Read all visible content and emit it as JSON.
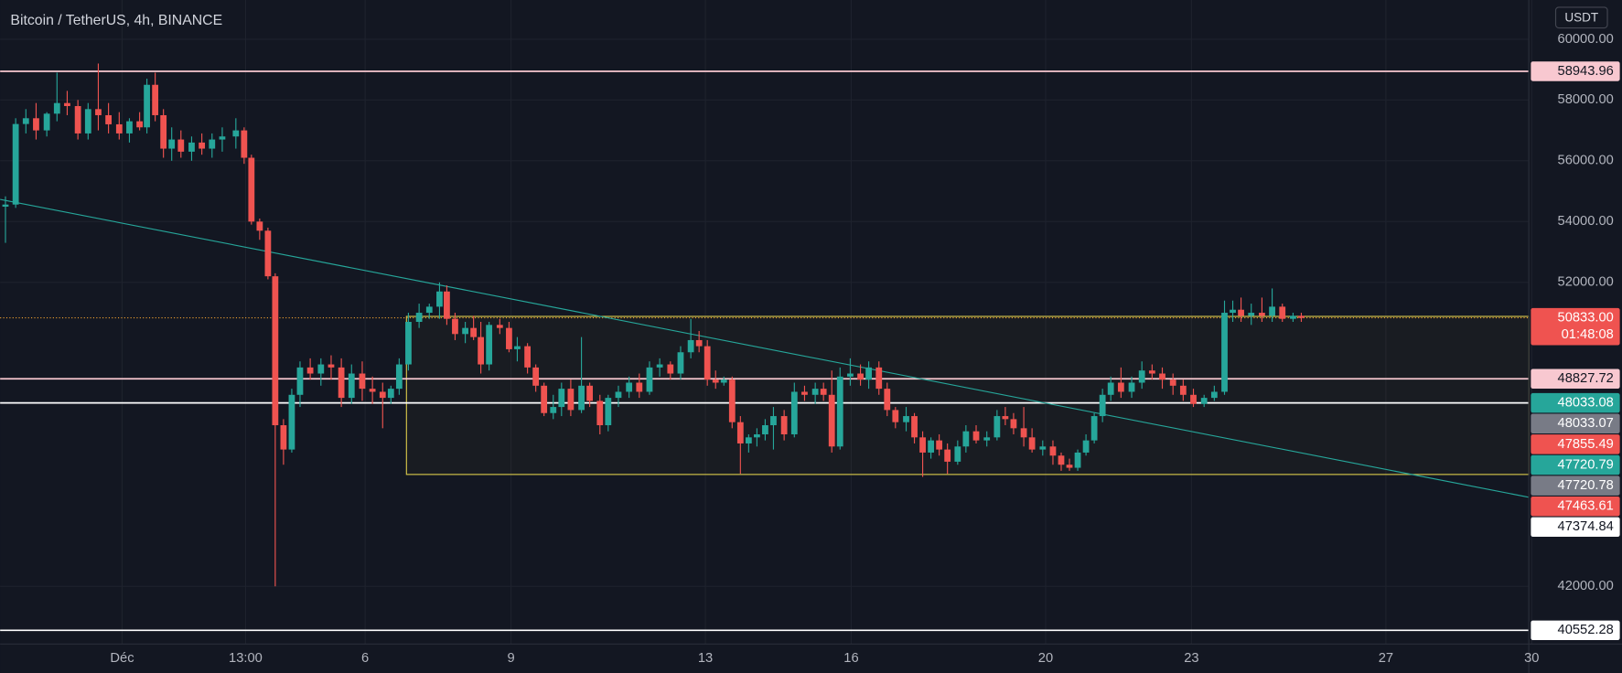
{
  "chart_data": {
    "type": "candlestick",
    "title": "Bitcoin / TetherUS, 4h, BINANCE",
    "currency": "USDT",
    "up_color": "#26a69a",
    "down_color": "#ef5350",
    "grid": true,
    "xlim": [
      -1.51,
      29.94
    ],
    "ylim": [
      40100,
      61290
    ],
    "xticks": [
      {
        "value": 1,
        "label": "Déc"
      },
      {
        "value": 3.54,
        "label": "13:00"
      },
      6,
      9,
      13,
      16,
      20,
      23,
      27,
      30
    ],
    "yticks": [
      {
        "value": 60000,
        "label": "60000.00"
      },
      {
        "value": 58000,
        "label": "58000.00"
      },
      {
        "value": 56000,
        "label": "56000.00"
      },
      {
        "value": 54000,
        "label": "54000.00"
      },
      {
        "value": 52000,
        "label": "52000.00"
      },
      {
        "value": 42000,
        "label": "42000.00"
      }
    ],
    "x": [
      -1.4,
      -1.19,
      -0.98,
      -0.77,
      -0.55,
      -0.34,
      -0.13,
      0.09,
      0.3,
      0.51,
      0.72,
      0.94,
      1.15,
      1.36,
      1.51,
      1.68,
      1.85,
      2.02,
      2.21,
      2.43,
      2.64,
      2.85,
      3.06,
      3.34,
      3.51,
      3.66,
      3.83,
      4.0,
      4.15,
      4.32,
      4.49,
      4.66,
      4.87,
      5.09,
      5.3,
      5.51,
      5.72,
      5.94,
      6.15,
      6.36,
      6.53,
      6.7,
      6.89,
      7.11,
      7.32,
      7.53,
      7.68,
      7.85,
      8.06,
      8.23,
      8.38,
      8.55,
      8.77,
      8.96,
      9.13,
      9.34,
      9.51,
      9.68,
      9.87,
      10.04,
      10.23,
      10.45,
      10.62,
      10.83,
      11.0,
      11.21,
      11.43,
      11.64,
      11.85,
      12.06,
      12.28,
      12.49,
      12.7,
      12.87,
      13.04,
      13.21,
      13.38,
      13.55,
      13.72,
      13.89,
      14.06,
      14.23,
      14.4,
      14.62,
      14.83,
      15.04,
      15.26,
      15.43,
      15.6,
      15.77,
      15.98,
      16.19,
      16.36,
      16.57,
      16.74,
      16.91,
      17.13,
      17.3,
      17.47,
      17.64,
      17.81,
      17.98,
      18.19,
      18.36,
      18.57,
      18.79,
      19.0,
      19.17,
      19.34,
      19.55,
      19.72,
      19.94,
      20.15,
      20.32,
      20.49,
      20.66,
      20.83,
      21.0,
      21.17,
      21.34,
      21.55,
      21.77,
      21.98,
      22.19,
      22.4,
      22.62,
      22.83,
      23.04,
      23.26,
      23.47,
      23.68,
      23.85,
      24.02,
      24.23,
      24.45,
      24.66,
      24.87,
      25.09,
      25.26
    ],
    "open": [
      54490,
      54560,
      57210,
      57400,
      57000,
      57550,
      57900,
      57800,
      56900,
      57700,
      57500,
      57200,
      56900,
      57300,
      57100,
      58500,
      57500,
      56400,
      56700,
      56300,
      56600,
      56400,
      56700,
      56800,
      57000,
      56100,
      54000,
      53700,
      52200,
      47300,
      46500,
      48300,
      49200,
      49000,
      49300,
      49200,
      48200,
      49000,
      48500,
      48400,
      48200,
      48500,
      49300,
      50700,
      51000,
      51200,
      51700,
      50800,
      50300,
      50500,
      50200,
      49300,
      50600,
      50500,
      49800,
      49900,
      49200,
      48600,
      47700,
      47900,
      48500,
      47800,
      48600,
      48100,
      47300,
      48200,
      48400,
      48700,
      48400,
      49200,
      49300,
      49000,
      49700,
      50100,
      49900,
      48800,
      48700,
      48800,
      47400,
      46700,
      46900,
      47000,
      47300,
      47600,
      47000,
      48400,
      48300,
      48500,
      48300,
      46600,
      48900,
      49000,
      48800,
      49200,
      48500,
      47800,
      47400,
      47600,
      46900,
      46400,
      46800,
      46500,
      46100,
      46600,
      47100,
      46800,
      46900,
      47600,
      47500,
      47200,
      46900,
      46500,
      46600,
      46300,
      46000,
      45900,
      46400,
      46800,
      47600,
      48300,
      48700,
      48400,
      48700,
      49100,
      49000,
      48800,
      48600,
      48300,
      48000,
      48200,
      48400,
      51000,
      51100,
      50900,
      51000,
      50900,
      51200,
      50800,
      50900
    ],
    "high": [
      54830,
      57400,
      57700,
      57900,
      57600,
      58900,
      58300,
      58000,
      57900,
      59200,
      57900,
      57600,
      57400,
      57600,
      58700,
      58900,
      57700,
      57100,
      57000,
      56800,
      56900,
      56900,
      57100,
      57400,
      57100,
      56200,
      54100,
      53800,
      52300,
      47500,
      48500,
      49400,
      49500,
      49500,
      49600,
      49500,
      49300,
      49400,
      48900,
      48700,
      48600,
      49500,
      51000,
      51300,
      51300,
      52000,
      51900,
      51000,
      50700,
      50900,
      50700,
      50700,
      50800,
      50700,
      50200,
      50000,
      49300,
      48700,
      48300,
      48700,
      48800,
      50200,
      48700,
      48300,
      48300,
      48600,
      48900,
      49000,
      49400,
      49500,
      49400,
      49900,
      50800,
      50400,
      50100,
      49100,
      48900,
      48900,
      47600,
      47000,
      47200,
      47500,
      47900,
      47800,
      48700,
      48600,
      48700,
      48700,
      49100,
      49200,
      49500,
      49300,
      49400,
      49400,
      48700,
      47900,
      47900,
      47700,
      47100,
      46900,
      47000,
      46700,
      46800,
      47300,
      47300,
      47100,
      47800,
      47900,
      47700,
      47900,
      47200,
      46800,
      46800,
      46400,
      46200,
      46500,
      47000,
      47700,
      48500,
      48900,
      49200,
      48900,
      49400,
      49300,
      49200,
      49000,
      48800,
      48500,
      48300,
      48600,
      51400,
      51400,
      51500,
      51300,
      51500,
      51800,
      51300,
      51000,
      51000
    ],
    "low": [
      53300,
      54450,
      56900,
      56700,
      56800,
      57300,
      57500,
      56700,
      56700,
      57000,
      56900,
      56700,
      56600,
      57000,
      56900,
      57300,
      56100,
      56000,
      56100,
      56000,
      56200,
      56100,
      56300,
      56400,
      55900,
      53900,
      53400,
      52100,
      42000,
      46000,
      46400,
      47900,
      48800,
      48600,
      48800,
      47900,
      48000,
      48100,
      48000,
      47200,
      48000,
      48300,
      49100,
      50500,
      50800,
      50800,
      50600,
      50100,
      50000,
      50100,
      49000,
      49100,
      50300,
      49700,
      49400,
      49000,
      48400,
      47600,
      47500,
      47600,
      47600,
      47700,
      47900,
      47000,
      47100,
      47900,
      48200,
      48200,
      48300,
      48900,
      48800,
      48800,
      49500,
      49700,
      48600,
      48500,
      48600,
      47200,
      45700,
      46400,
      46600,
      46800,
      46500,
      46800,
      46900,
      48100,
      48000,
      48100,
      46400,
      46500,
      48600,
      48600,
      48500,
      48300,
      47600,
      47200,
      47100,
      46700,
      45600,
      46200,
      46300,
      45700,
      46000,
      46400,
      46700,
      46600,
      46800,
      47300,
      47000,
      46600,
      46400,
      46300,
      46000,
      45800,
      45800,
      45800,
      46300,
      46700,
      47400,
      48100,
      48200,
      48200,
      48500,
      48800,
      48500,
      48300,
      48100,
      47900,
      47900,
      48100,
      48300,
      50700,
      50700,
      50600,
      50700,
      50700,
      50700,
      50700,
      50700
    ],
    "close": [
      54560,
      57210,
      57400,
      57000,
      57550,
      57900,
      57800,
      56900,
      57700,
      57500,
      57200,
      56900,
      57300,
      57100,
      58500,
      57500,
      56400,
      56700,
      56300,
      56600,
      56400,
      56700,
      56800,
      57000,
      56100,
      54000,
      53700,
      52200,
      47300,
      46500,
      48300,
      49200,
      49000,
      49300,
      49200,
      48200,
      49000,
      48500,
      48400,
      48200,
      48500,
      49300,
      50700,
      51000,
      51200,
      51700,
      50800,
      50300,
      50500,
      50200,
      49300,
      50600,
      50500,
      49800,
      49900,
      49200,
      48600,
      47700,
      47900,
      48500,
      47800,
      48600,
      48100,
      47300,
      48200,
      48400,
      48700,
      48400,
      49200,
      49300,
      49000,
      49700,
      50100,
      49900,
      48800,
      48700,
      48800,
      47400,
      46700,
      46900,
      47000,
      47300,
      47600,
      47000,
      48400,
      48300,
      48500,
      48300,
      46600,
      48900,
      49000,
      48800,
      49200,
      48500,
      47800,
      47400,
      47600,
      46900,
      46400,
      46800,
      46500,
      46100,
      46600,
      47100,
      46800,
      46900,
      47600,
      47500,
      47200,
      46900,
      46500,
      46600,
      46300,
      46000,
      45900,
      46400,
      46800,
      47600,
      48300,
      48700,
      48400,
      48700,
      49100,
      49000,
      48800,
      48600,
      48300,
      48000,
      48200,
      48400,
      51000,
      51100,
      50900,
      51000,
      50900,
      51200,
      50800,
      50900,
      50830
    ],
    "trend_line": {
      "x": [
        -1.51,
        29.94
      ],
      "y": [
        54730,
        44930
      ],
      "color": "#26a69a"
    },
    "box": {
      "x": [
        6.85,
        29.94
      ],
      "y": [
        45680,
        50880
      ],
      "color": "#d8c84a"
    },
    "price_labels": [
      {
        "value": 58943.96,
        "color": "#f8c8d0",
        "text_color": "#131722",
        "line_color": "#f8c8d0"
      },
      {
        "value": 50833,
        "label": "50833.00",
        "sublabel": "01:48:08",
        "color": "#ef5350",
        "text_color": "#ffffff",
        "line_color": "#f0a030",
        "dashed": true
      },
      {
        "value": 48827.72,
        "color": "#f8c8d0",
        "text_color": "#131722",
        "line_color": "#f8c8d0"
      },
      {
        "value": 48033.08,
        "color": "#26a69a",
        "text_color": "#ffffff"
      },
      {
        "value": 48033.07,
        "color": "#787b86",
        "text_color": "#ffffff",
        "line_color": "#ffffff"
      },
      {
        "value": 47855.49,
        "color": "#ef5350",
        "text_color": "#ffffff"
      },
      {
        "value": 47720.79,
        "color": "#26a69a",
        "text_color": "#ffffff"
      },
      {
        "value": 47720.78,
        "color": "#787b86",
        "text_color": "#ffffff"
      },
      {
        "value": 47463.61,
        "color": "#ef5350",
        "text_color": "#ffffff"
      },
      {
        "value": 47374.84,
        "color": "#ffffff",
        "text_color": "#131722"
      },
      {
        "value": 40552.28,
        "color": "#ffffff",
        "text_color": "#131722",
        "line_color": "#ffffff"
      }
    ]
  }
}
